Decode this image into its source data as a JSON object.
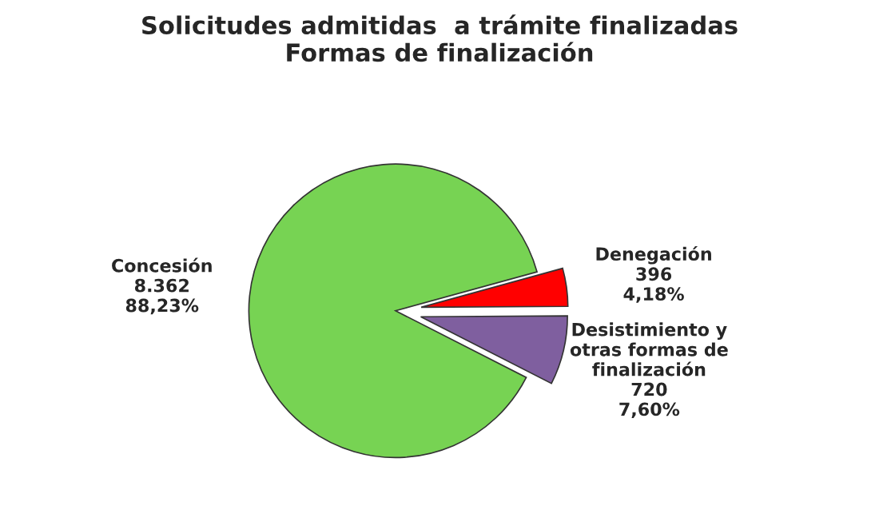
{
  "chart_data": {
    "type": "pie",
    "title": "Solicitudes admitidas  a trámite finalizadas\nFormas de finalización",
    "categories": [
      "Concesión",
      "Denegación",
      "Desistimiento y\notras formas de\nfinalización"
    ],
    "values": [
      8362,
      396,
      720
    ],
    "value_labels": [
      "8.362\n88,23%",
      "396\n4,18%",
      "720\n7,60%"
    ],
    "colors": [
      "#77d353",
      "#ff0000",
      "#7f5f9f"
    ],
    "legend": false
  }
}
